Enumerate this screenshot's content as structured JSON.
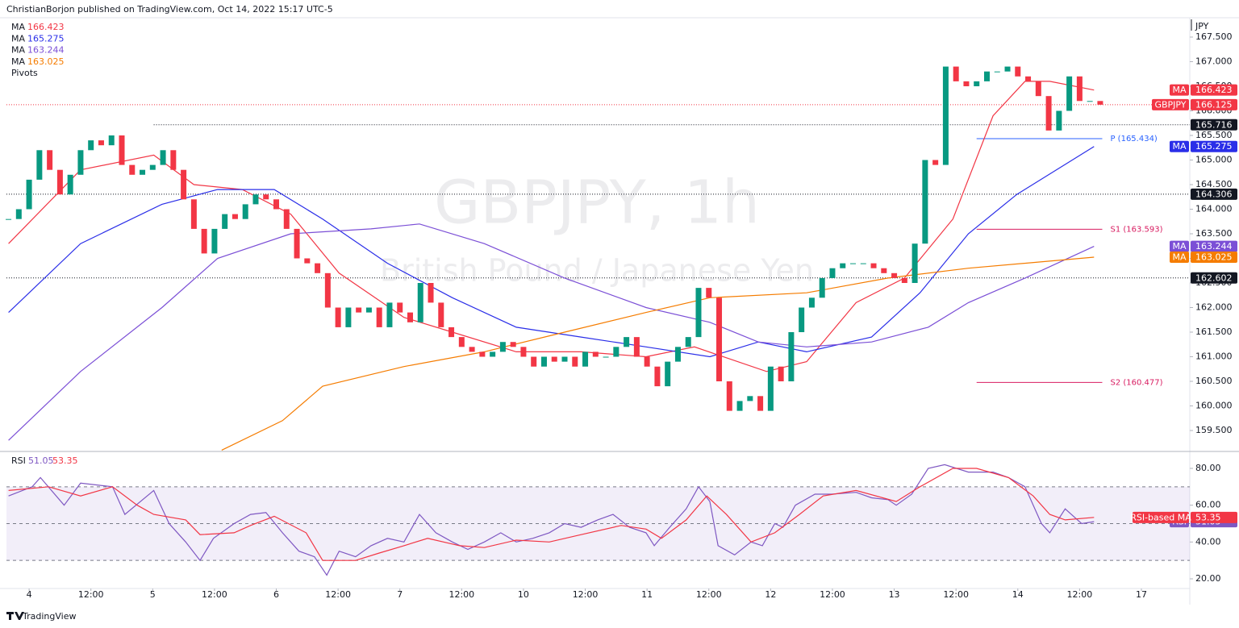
{
  "header": "ChristianBorjon published on TradingView.com, Oct 14, 2022 15:17 UTC-5",
  "footer": "TradingView",
  "chart_data": [
    {
      "type": "candlestick",
      "title": "GBPJPY, 1h",
      "subtitle": "British Pound / Japanese Yen",
      "symbol": "GBPJPY",
      "last": 166.125,
      "unit": "JPY",
      "up_color": "#089981",
      "down_color": "#f23645",
      "closes": [
        163.8,
        164.0,
        164.6,
        165.2,
        164.8,
        164.3,
        164.7,
        165.2,
        165.4,
        165.3,
        165.5,
        164.9,
        164.7,
        164.8,
        164.9,
        165.2,
        164.8,
        164.2,
        163.6,
        163.1,
        163.6,
        163.9,
        163.8,
        164.1,
        164.3,
        164.2,
        164.0,
        163.6,
        163.0,
        162.9,
        162.7,
        162.0,
        161.6,
        162.0,
        161.9,
        162.0,
        161.6,
        162.1,
        161.9,
        161.7,
        162.5,
        162.1,
        161.6,
        161.4,
        161.2,
        161.1,
        161.0,
        161.1,
        161.3,
        161.2,
        161.0,
        160.8,
        161.0,
        160.9,
        161.0,
        160.8,
        161.1,
        161.0,
        161.0,
        161.2,
        161.4,
        161.0,
        160.8,
        160.4,
        160.9,
        161.2,
        161.4,
        162.4,
        162.2,
        160.5,
        159.9,
        160.1,
        160.2,
        159.9,
        160.8,
        160.5,
        161.5,
        162.0,
        162.2,
        162.6,
        162.8,
        162.9,
        162.9,
        162.9,
        162.8,
        162.7,
        162.6,
        162.5,
        163.3,
        165.0,
        164.9,
        166.9,
        166.6,
        166.5,
        166.6,
        166.8,
        166.8,
        166.9,
        166.7,
        166.6,
        166.3,
        165.6,
        166.0,
        166.7,
        166.2,
        166.2,
        166.125
      ],
      "xlim": [
        -0.2,
        114.7
      ],
      "ylim": [
        159.107,
        167.893
      ],
      "yticks": [
        {
          "value": 159.5,
          "label": "159.500"
        },
        {
          "value": 160,
          "label": "160.000"
        },
        {
          "value": 160.5,
          "label": "160.500"
        },
        {
          "value": 161,
          "label": "161.000"
        },
        {
          "value": 161.5,
          "label": "161.500"
        },
        {
          "value": 162,
          "label": "162.000"
        },
        {
          "value": 162.5,
          "label": "162.500"
        },
        {
          "value": 163,
          "label": "163.000"
        },
        {
          "value": 163.5,
          "label": "163.500"
        },
        {
          "value": 164,
          "label": "164.000"
        },
        {
          "value": 164.5,
          "label": "164.500"
        },
        {
          "value": 165,
          "label": "165.000"
        },
        {
          "value": 165.5,
          "label": "165.500"
        },
        {
          "value": 166,
          "label": "166.000"
        },
        {
          "value": 166.5,
          "label": "166.500"
        },
        {
          "value": 167,
          "label": "167.000"
        },
        {
          "value": 167.5,
          "label": "167.500"
        }
      ],
      "series": [
        {
          "name": "MA",
          "color": "#f23645",
          "value": 166.423,
          "x": [
            0,
            7.0,
            14.1,
            18.0,
            22.7,
            27.4,
            32.1,
            38.4,
            43.1,
            49.3,
            55.6,
            61.9,
            66.6,
            73.6,
            77.5,
            82.3,
            87.0,
            91.7,
            95.6,
            98.7,
            101.1,
            105.4
          ],
          "values": [
            163.3,
            164.8,
            165.1,
            164.5,
            164.4,
            163.9,
            162.7,
            161.8,
            161.5,
            161.1,
            161.1,
            161.0,
            161.2,
            160.7,
            160.9,
            162.1,
            162.6,
            163.8,
            165.9,
            166.6,
            166.6,
            166.423
          ]
        },
        {
          "name": "MA",
          "color": "#2a2ee8",
          "value": 165.275,
          "x": [
            0,
            7.0,
            14.9,
            20.3,
            25.8,
            30.5,
            36.8,
            43.1,
            49.3,
            55.6,
            61.9,
            68.1,
            72.8,
            77.5,
            83.8,
            88.5,
            93.2,
            97.9,
            105.4
          ],
          "values": [
            161.9,
            163.3,
            164.1,
            164.4,
            164.4,
            163.8,
            162.9,
            162.2,
            161.6,
            161.4,
            161.2,
            161.0,
            161.3,
            161.1,
            161.4,
            162.3,
            163.5,
            164.3,
            165.275
          ]
        },
        {
          "name": "MA",
          "color": "#7b4fd6",
          "value": 163.244,
          "x": [
            0,
            7.0,
            14.9,
            20.3,
            27.4,
            35.2,
            39.9,
            46.2,
            54.0,
            61.9,
            68.1,
            72.8,
            77.5,
            83.8,
            89.3,
            93.2,
            98.7,
            105.4
          ],
          "values": [
            159.3,
            160.7,
            162.0,
            163.0,
            163.5,
            163.6,
            163.7,
            163.3,
            162.6,
            162.0,
            161.7,
            161.3,
            161.2,
            161.3,
            161.6,
            162.1,
            162.6,
            163.244
          ]
        },
        {
          "name": "MA",
          "color": "#f57c00",
          "value": 163.025,
          "x": [
            20.7,
            26.6,
            30.5,
            38.4,
            46.2,
            54.0,
            61.9,
            68.1,
            77.5,
            85.4,
            93.2,
            105.4
          ],
          "values": [
            159.1,
            159.7,
            160.4,
            160.8,
            161.1,
            161.5,
            161.9,
            162.2,
            162.3,
            162.6,
            162.8,
            163.025
          ]
        }
      ],
      "levels": [
        {
          "value": 165.716,
          "from": 14.1
        },
        {
          "value": 164.306,
          "from": -0.2
        },
        {
          "value": 162.602,
          "from": -0.2
        }
      ],
      "pivots_label": "Pivots",
      "pivots": [
        {
          "value": 165.434,
          "label": "P (165.434)",
          "color": "#2962ff",
          "x": [
            94.0,
            106.2
          ]
        },
        {
          "value": 163.593,
          "label": "S1 (163.593)",
          "color": "#d81b60",
          "x": [
            94.0,
            106.2
          ]
        },
        {
          "value": 160.477,
          "label": "S2 (160.477)",
          "color": "#d81b60",
          "x": [
            94.0,
            106.2
          ]
        }
      ]
    },
    {
      "type": "line",
      "xlim": [
        -0.2,
        114.7
      ],
      "ylim": [
        14.74,
        88.32
      ],
      "yticks": [
        {
          "value": 20,
          "label": "20.00"
        },
        {
          "value": 40,
          "label": "40.00"
        },
        {
          "value": 60,
          "label": "60.00"
        },
        {
          "value": 80,
          "label": "80.00"
        }
      ],
      "band": [
        30,
        70
      ],
      "middle": 50,
      "xticks": [
        {
          "value": 2,
          "label": "4"
        },
        {
          "value": 8,
          "label": "12:00"
        },
        {
          "value": 14,
          "label": "5"
        },
        {
          "value": 20,
          "label": "12:00"
        },
        {
          "value": 26,
          "label": "6"
        },
        {
          "value": 32,
          "label": "12:00"
        },
        {
          "value": 38,
          "label": "7"
        },
        {
          "value": 44,
          "label": "12:00"
        },
        {
          "value": 50,
          "label": "10"
        },
        {
          "value": 56,
          "label": "12:00"
        },
        {
          "value": 62,
          "label": "11"
        },
        {
          "value": 68,
          "label": "12:00"
        },
        {
          "value": 74,
          "label": "12"
        },
        {
          "value": 80,
          "label": "12:00"
        },
        {
          "value": 86,
          "label": "13"
        },
        {
          "value": 92,
          "label": "12:00"
        },
        {
          "value": 98,
          "label": "14"
        },
        {
          "value": 104,
          "label": "12:00"
        },
        {
          "value": 110,
          "label": "17"
        }
      ],
      "series": [
        {
          "name": "RSI",
          "color": "#7e57c2",
          "value": 51.05,
          "x": [
            0,
            2.3,
            3.1,
            5.4,
            7.0,
            10.1,
            11.3,
            14.1,
            15.6,
            17.2,
            18.6,
            19.9,
            21.9,
            23.5,
            25.0,
            26.6,
            28.2,
            29.7,
            30.9,
            32.1,
            33.7,
            35.2,
            36.8,
            38.4,
            39.9,
            41.5,
            43.1,
            44.6,
            46.2,
            47.8,
            49.3,
            50.9,
            52.5,
            54.0,
            55.6,
            57.2,
            58.7,
            60.3,
            61.9,
            62.7,
            64.2,
            65.8,
            67.0,
            68.1,
            68.9,
            70.5,
            72.1,
            73.2,
            74.4,
            75.2,
            76.4,
            78.3,
            79.9,
            82.3,
            83.8,
            85.4,
            86.2,
            87.7,
            89.3,
            90.9,
            93.2,
            95.6,
            97.1,
            98.7,
            100.3,
            101.1,
            102.6,
            104.2,
            105.4
          ],
          "values": [
            65,
            70,
            75,
            60,
            72,
            70,
            55,
            68,
            50,
            40,
            30,
            42,
            50,
            55,
            56,
            45,
            35,
            32,
            22,
            35,
            32,
            38,
            42,
            40,
            55,
            45,
            40,
            36,
            40,
            45,
            40,
            42,
            45,
            50,
            48,
            52,
            55,
            48,
            45,
            38,
            48,
            58,
            70,
            62,
            38,
            33,
            40,
            38,
            50,
            48,
            60,
            66,
            66,
            67,
            64,
            63,
            60,
            66,
            80,
            82,
            78,
            78,
            75,
            70,
            50,
            45,
            58,
            50,
            51.05
          ]
        },
        {
          "name": "RSI-based MA",
          "color": "#f23645",
          "value": 53.35,
          "x": [
            0,
            3.9,
            7.0,
            10.1,
            12.5,
            14.1,
            17.2,
            18.6,
            21.9,
            23.5,
            25.8,
            28.9,
            30.5,
            33.7,
            36.0,
            38.4,
            40.7,
            43.8,
            46.2,
            49.3,
            52.5,
            55.6,
            59.5,
            61.9,
            63.4,
            65.8,
            67.8,
            69.7,
            72.1,
            74.4,
            76.8,
            79.1,
            82.3,
            86.2,
            88.5,
            91.7,
            94.0,
            97.1,
            99.5,
            101.1,
            102.6,
            105.4
          ],
          "values": [
            68,
            70,
            65,
            70,
            60,
            55,
            52,
            44,
            45,
            49,
            54,
            45,
            30,
            30,
            34,
            38,
            42,
            38,
            37,
            41,
            40,
            44,
            49,
            47,
            42,
            52,
            65,
            55,
            40,
            45,
            55,
            65,
            68,
            62,
            70,
            80,
            80,
            75,
            65,
            55,
            52,
            53.35
          ]
        }
      ]
    }
  ]
}
